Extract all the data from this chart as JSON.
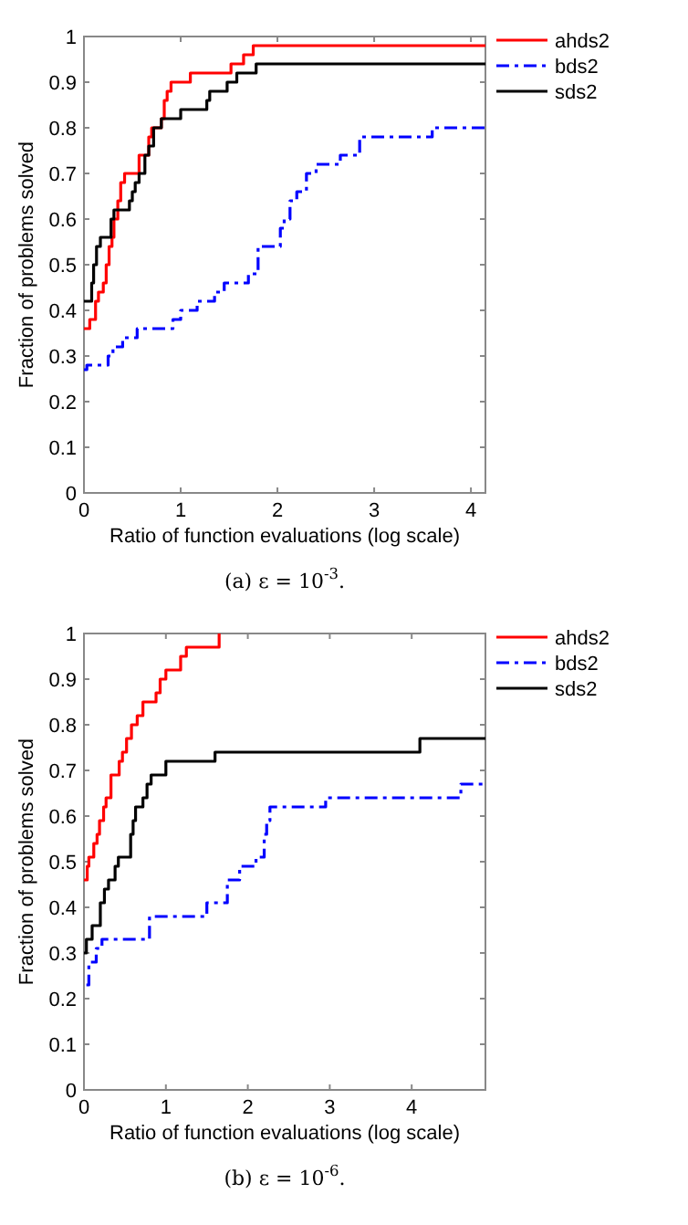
{
  "chart_data": [
    {
      "type": "step",
      "xlabel": "Ratio of function evaluations (log scale)",
      "ylabel": "Fraction of problems solved",
      "annotations": [
        "(a) ε = 10$^{-3}$."
      ],
      "xlim": [
        0,
        4.15
      ],
      "xticks": [
        0,
        1,
        2,
        3,
        4
      ],
      "ylim": [
        0,
        1
      ],
      "yticks": [
        0,
        0.1,
        0.2,
        0.3,
        0.4,
        0.5,
        0.6,
        0.7,
        0.8,
        0.9,
        1
      ],
      "legend": "top right",
      "grid": false,
      "series": [
        {
          "name": "ahds2",
          "color": "#ff0000",
          "line_style": "solid",
          "x": [
            0,
            0.06,
            0.12,
            0.15,
            0.2,
            0.23,
            0.26,
            0.29,
            0.31,
            0.35,
            0.38,
            0.42,
            0.57,
            0.67,
            0.7,
            0.8,
            0.83,
            0.86,
            0.9,
            1.1,
            1.52,
            1.65,
            1.75,
            4.15
          ],
          "values": [
            0.36,
            0.38,
            0.42,
            0.44,
            0.46,
            0.5,
            0.54,
            0.56,
            0.6,
            0.64,
            0.68,
            0.7,
            0.74,
            0.78,
            0.8,
            0.82,
            0.86,
            0.88,
            0.9,
            0.92,
            0.94,
            0.96,
            0.98,
            0.98
          ]
        },
        {
          "name": "bds2",
          "color": "#0000ff",
          "line_style": "dashed",
          "x": [
            0,
            0.03,
            0.25,
            0.3,
            0.4,
            0.55,
            0.92,
            1.0,
            1.17,
            1.35,
            1.45,
            1.7,
            1.8,
            2.03,
            2.07,
            2.13,
            2.2,
            2.3,
            2.4,
            2.65,
            2.85,
            3.6,
            4.15
          ],
          "values": [
            0.27,
            0.28,
            0.3,
            0.32,
            0.34,
            0.36,
            0.38,
            0.4,
            0.42,
            0.44,
            0.46,
            0.48,
            0.54,
            0.58,
            0.6,
            0.64,
            0.66,
            0.7,
            0.72,
            0.74,
            0.78,
            0.8,
            0.8
          ]
        },
        {
          "name": "sds2",
          "color": "#000000",
          "line_style": "solid",
          "x": [
            0,
            0.08,
            0.1,
            0.13,
            0.17,
            0.28,
            0.31,
            0.47,
            0.5,
            0.53,
            0.57,
            0.63,
            0.67,
            0.72,
            0.8,
            1.0,
            1.27,
            1.3,
            1.48,
            1.58,
            1.78,
            4.15
          ],
          "values": [
            0.42,
            0.46,
            0.5,
            0.54,
            0.56,
            0.6,
            0.62,
            0.64,
            0.66,
            0.68,
            0.7,
            0.74,
            0.76,
            0.8,
            0.82,
            0.84,
            0.86,
            0.88,
            0.9,
            0.92,
            0.94,
            0.94
          ]
        }
      ]
    },
    {
      "type": "step",
      "xlabel": "Ratio of function evaluations (log scale)",
      "ylabel": "Fraction of problems solved",
      "annotations": [
        "(b) ε = 10$^{-6}$."
      ],
      "xlim": [
        0,
        4.9
      ],
      "xticks": [
        0,
        1,
        2,
        3,
        4
      ],
      "ylim": [
        0,
        1
      ],
      "yticks": [
        0,
        0.1,
        0.2,
        0.3,
        0.4,
        0.5,
        0.6,
        0.7,
        0.8,
        0.9,
        1
      ],
      "legend": "top right",
      "grid": false,
      "series": [
        {
          "name": "ahds2",
          "color": "#ff0000",
          "line_style": "solid",
          "x": [
            0,
            0.04,
            0.06,
            0.12,
            0.16,
            0.19,
            0.24,
            0.27,
            0.33,
            0.43,
            0.47,
            0.52,
            0.58,
            0.65,
            0.72,
            0.88,
            0.93,
            1.0,
            1.18,
            1.25,
            1.65
          ],
          "values": [
            0.46,
            0.49,
            0.51,
            0.54,
            0.56,
            0.59,
            0.62,
            0.64,
            0.69,
            0.72,
            0.74,
            0.77,
            0.8,
            0.82,
            0.85,
            0.87,
            0.9,
            0.92,
            0.95,
            0.97,
            1
          ]
        },
        {
          "name": "bds2",
          "color": "#0000ff",
          "line_style": "dashed",
          "x": [
            0.03,
            0.06,
            0.15,
            0.22,
            0.8,
            1.5,
            1.75,
            1.9,
            2.1,
            2.2,
            2.23,
            2.27,
            2.95,
            4.6,
            4.9
          ],
          "values": [
            0.23,
            0.28,
            0.31,
            0.33,
            0.38,
            0.41,
            0.46,
            0.49,
            0.51,
            0.56,
            0.59,
            0.62,
            0.64,
            0.67,
            0.67
          ]
        },
        {
          "name": "sds2",
          "color": "#000000",
          "line_style": "solid",
          "x": [
            0,
            0.03,
            0.1,
            0.2,
            0.25,
            0.3,
            0.38,
            0.42,
            0.57,
            0.6,
            0.63,
            0.72,
            0.77,
            0.82,
            1.0,
            1.6,
            4.1,
            4.9
          ],
          "values": [
            0.3,
            0.33,
            0.36,
            0.41,
            0.44,
            0.46,
            0.49,
            0.51,
            0.56,
            0.59,
            0.62,
            0.64,
            0.67,
            0.69,
            0.72,
            0.74,
            0.77,
            0.77
          ]
        }
      ]
    }
  ]
}
